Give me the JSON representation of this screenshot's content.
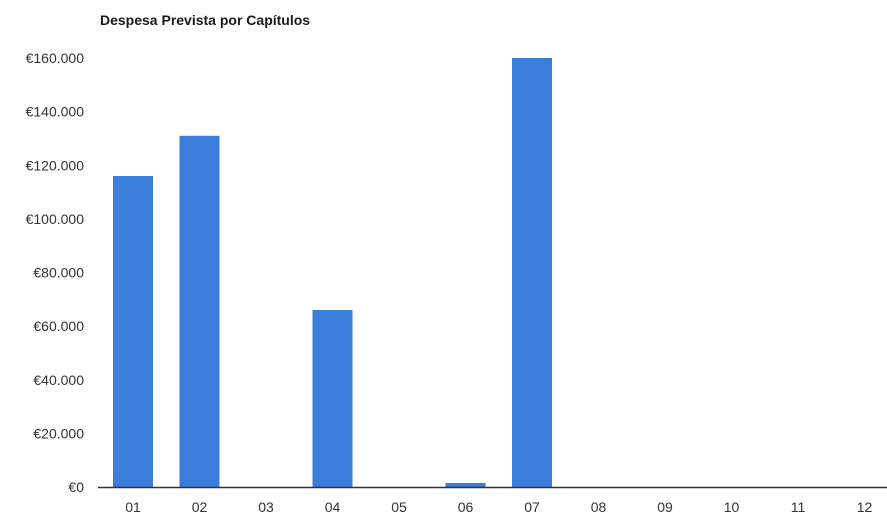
{
  "chart_data": {
    "type": "bar",
    "title": "Despesa Prevista por Capítulos",
    "xlabel": "",
    "ylabel": "",
    "categories": [
      "01",
      "02",
      "03",
      "04",
      "05",
      "06",
      "07",
      "08",
      "09",
      "10",
      "11",
      "12"
    ],
    "values": [
      116000,
      131000,
      0,
      66000,
      0,
      1500,
      160000,
      0,
      0,
      0,
      0,
      0
    ],
    "ylim": [
      0,
      160000
    ],
    "yticks": [
      0,
      20000,
      40000,
      60000,
      80000,
      100000,
      120000,
      140000,
      160000
    ],
    "ytick_labels": [
      "€0",
      "€20.000",
      "€40.000",
      "€60.000",
      "€80.000",
      "€100.000",
      "€120.000",
      "€140.000",
      "€160.000"
    ],
    "grid": false,
    "colors": {
      "bar": "#3a7ddb",
      "axis": "#333333"
    }
  }
}
